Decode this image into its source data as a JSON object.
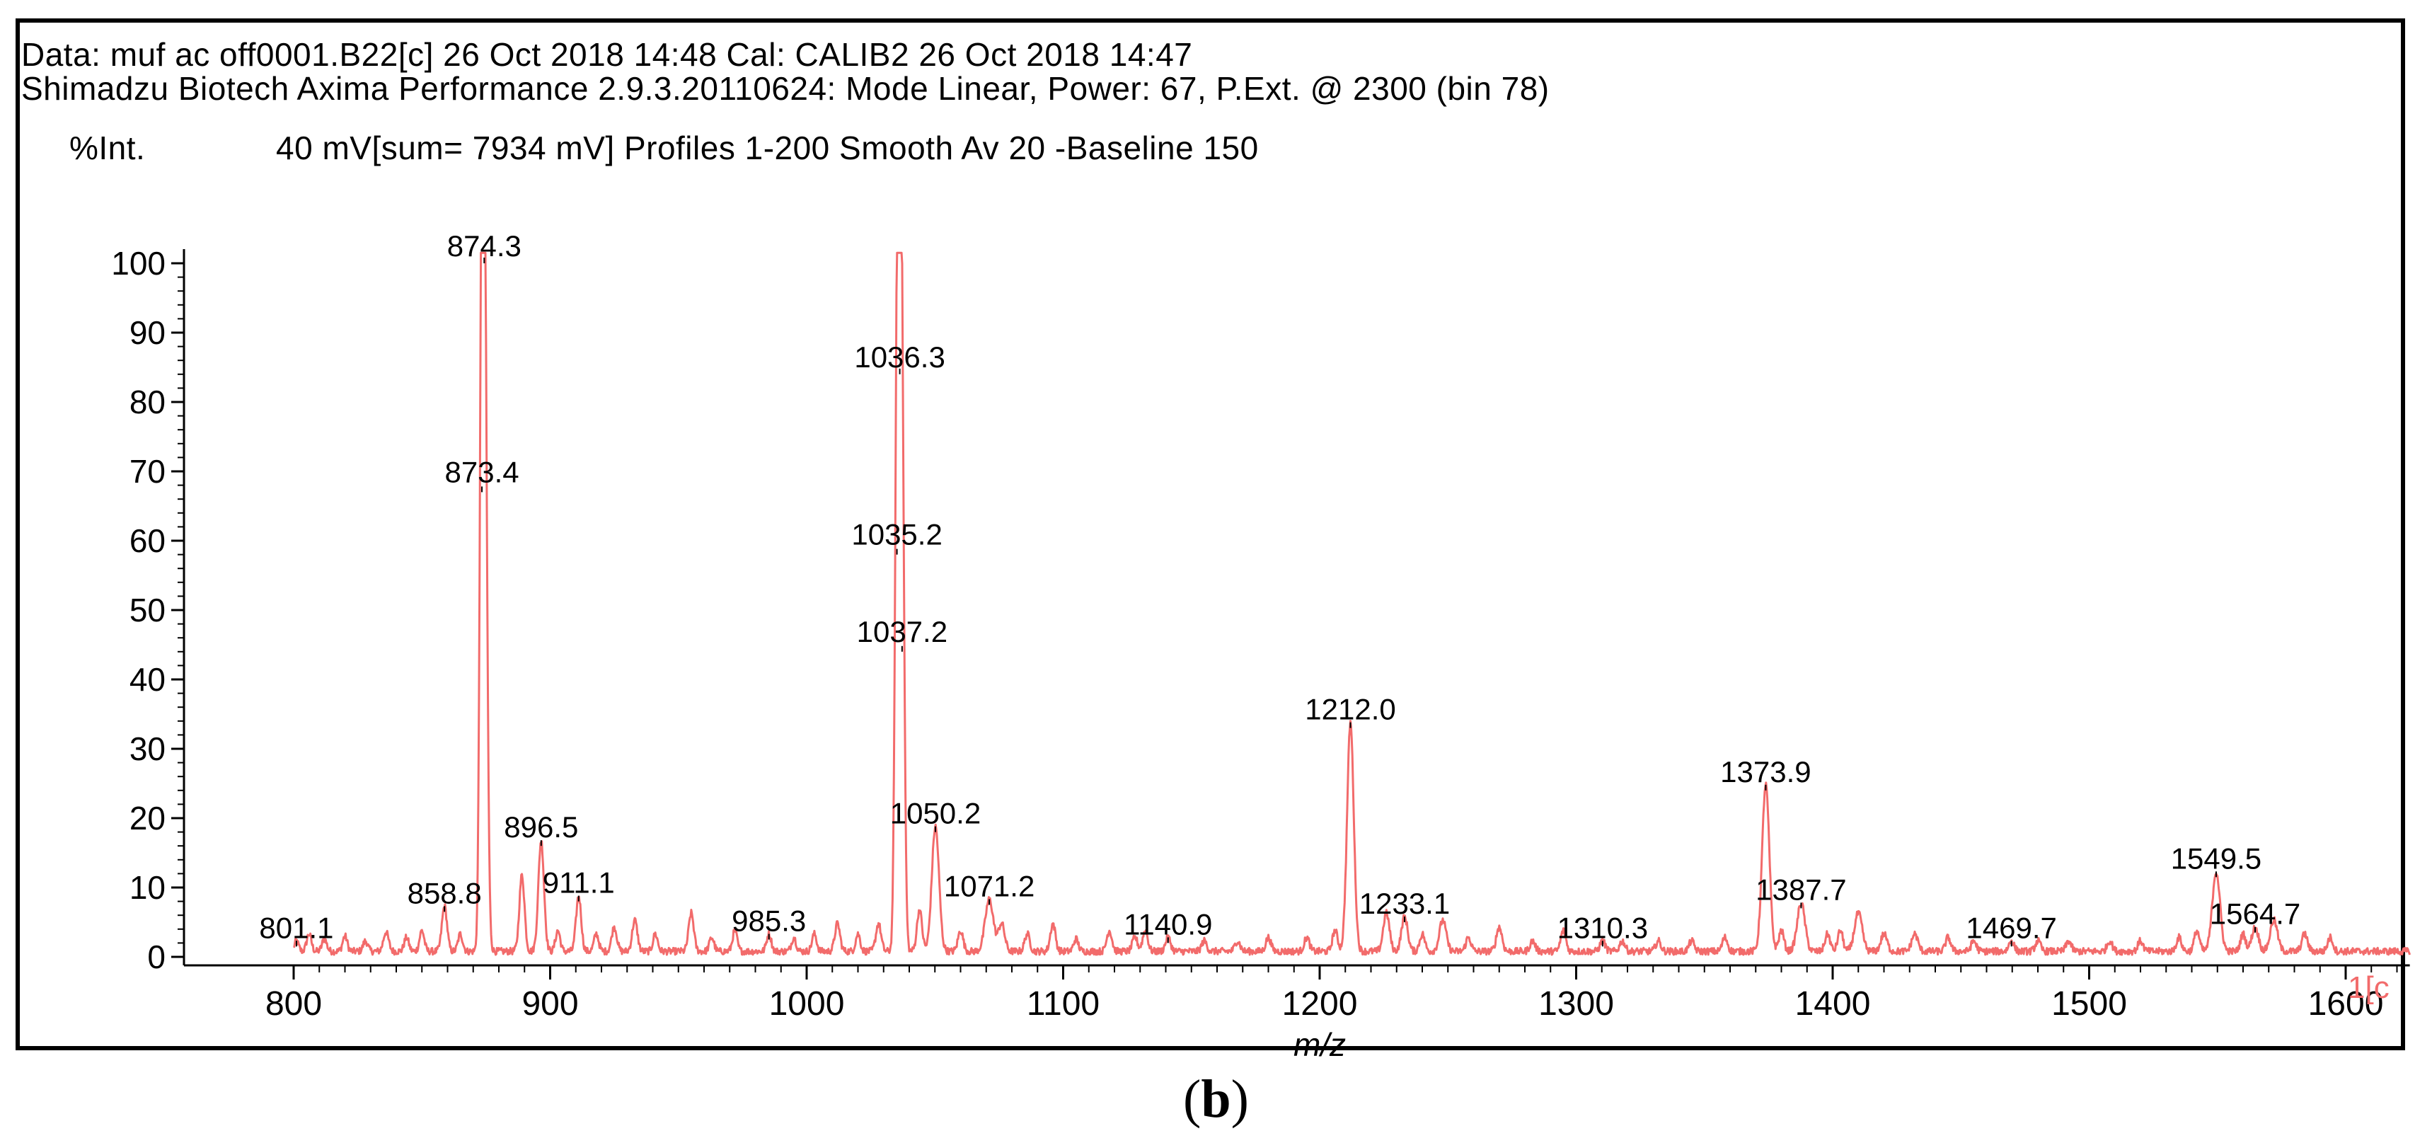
{
  "header": {
    "line1": "Data: muf ac off0001.B22[c] 26 Oct 2018 14:48 Cal: CALIB2 26 Oct 2018 14:47",
    "line2": "Shimadzu Biotech Axima Performance 2.9.3.20110624: Mode Linear, Power: 67, P.Ext. @ 2300 (bin 78)",
    "ylabel": "%Int.",
    "info": "40 mV[sum= 7934 mV]  Profiles 1-200 Smooth Av 20 -Baseline 150"
  },
  "caption": {
    "open": "(",
    "letter": "b",
    "close": ")"
  },
  "colors": {
    "spectrum": "#f26b6b",
    "axis": "#000000"
  },
  "chart_data": {
    "type": "line",
    "title": "",
    "xlabel": "m/z",
    "ylabel": "%Int.",
    "xlim": [
      800,
      1625
    ],
    "ylim": [
      0,
      100
    ],
    "x_ticks": [
      800,
      900,
      1000,
      1100,
      1200,
      1300,
      1400,
      1500,
      1600
    ],
    "y_ticks": [
      0,
      10,
      20,
      30,
      40,
      50,
      60,
      70,
      80,
      90,
      100
    ],
    "edge_label": "1[c",
    "peaks": [
      {
        "x": 801.1,
        "y": 1.5,
        "w": 0.8,
        "label": "801.1"
      },
      {
        "x": 858.8,
        "y": 6.5,
        "w": 1.0,
        "label": "858.8"
      },
      {
        "x": 873.4,
        "y": 67,
        "w": 0.8,
        "label": "873.4"
      },
      {
        "x": 874.3,
        "y": 100,
        "w": 1.0,
        "label": "874.3"
      },
      {
        "x": 896.5,
        "y": 16,
        "w": 1.1,
        "label": "896.5"
      },
      {
        "x": 911.1,
        "y": 8,
        "w": 1.0,
        "label": "911.1"
      },
      {
        "x": 985.3,
        "y": 2.5,
        "w": 0.9,
        "label": "985.3"
      },
      {
        "x": 1035.2,
        "y": 58,
        "w": 0.8,
        "label": "1035.2"
      },
      {
        "x": 1036.3,
        "y": 84,
        "w": 1.0,
        "label": "1036.3"
      },
      {
        "x": 1037.2,
        "y": 44,
        "w": 0.9,
        "label": "1037.2"
      },
      {
        "x": 1050.2,
        "y": 18,
        "w": 1.4,
        "label": "1050.2"
      },
      {
        "x": 1071.2,
        "y": 7.5,
        "w": 1.6,
        "label": "1071.2"
      },
      {
        "x": 1140.9,
        "y": 2,
        "w": 1.0,
        "label": "1140.9"
      },
      {
        "x": 1212.0,
        "y": 33,
        "w": 1.3,
        "label": "1212.0"
      },
      {
        "x": 1233.1,
        "y": 5,
        "w": 1.2,
        "label": "1233.1"
      },
      {
        "x": 1310.3,
        "y": 1.5,
        "w": 1.0,
        "label": "1310.3"
      },
      {
        "x": 1373.9,
        "y": 24,
        "w": 1.4,
        "label": "1373.9"
      },
      {
        "x": 1387.7,
        "y": 7,
        "w": 1.5,
        "label": "1387.7"
      },
      {
        "x": 1469.7,
        "y": 1.5,
        "w": 1.0,
        "label": "1469.7"
      },
      {
        "x": 1549.5,
        "y": 11.5,
        "w": 1.5,
        "label": "1549.5"
      },
      {
        "x": 1564.7,
        "y": 3.5,
        "w": 1.3,
        "label": "1564.7"
      }
    ],
    "minor_peaks": [
      {
        "x": 806,
        "y": 2.5,
        "w": 0.9
      },
      {
        "x": 812,
        "y": 1.8,
        "w": 0.9
      },
      {
        "x": 820,
        "y": 2.2,
        "w": 0.9
      },
      {
        "x": 828,
        "y": 1.5,
        "w": 0.9
      },
      {
        "x": 836,
        "y": 2.8,
        "w": 1.0
      },
      {
        "x": 844,
        "y": 2.0,
        "w": 0.9
      },
      {
        "x": 850,
        "y": 3.0,
        "w": 0.9
      },
      {
        "x": 865,
        "y": 2.5,
        "w": 0.9
      },
      {
        "x": 889,
        "y": 11,
        "w": 1.0
      },
      {
        "x": 903,
        "y": 3.0,
        "w": 0.9
      },
      {
        "x": 918,
        "y": 2.5,
        "w": 0.9
      },
      {
        "x": 925,
        "y": 3.5,
        "w": 1.0
      },
      {
        "x": 933,
        "y": 4.5,
        "w": 1.0
      },
      {
        "x": 941,
        "y": 2.5,
        "w": 0.9
      },
      {
        "x": 955,
        "y": 5.5,
        "w": 1.0
      },
      {
        "x": 963,
        "y": 2.0,
        "w": 0.9
      },
      {
        "x": 972,
        "y": 3.0,
        "w": 0.9
      },
      {
        "x": 995,
        "y": 2.0,
        "w": 0.9
      },
      {
        "x": 1003,
        "y": 2.5,
        "w": 0.9
      },
      {
        "x": 1012,
        "y": 4.0,
        "w": 1.0
      },
      {
        "x": 1020,
        "y": 2.5,
        "w": 0.9
      },
      {
        "x": 1028,
        "y": 4.0,
        "w": 1.0
      },
      {
        "x": 1044,
        "y": 6.0,
        "w": 1.0
      },
      {
        "x": 1060,
        "y": 3.0,
        "w": 1.0
      },
      {
        "x": 1076,
        "y": 4.0,
        "w": 1.2
      },
      {
        "x": 1086,
        "y": 2.5,
        "w": 1.0
      },
      {
        "x": 1096,
        "y": 4.0,
        "w": 1.0
      },
      {
        "x": 1105,
        "y": 1.8,
        "w": 0.9
      },
      {
        "x": 1118,
        "y": 3.0,
        "w": 1.0
      },
      {
        "x": 1128,
        "y": 2.0,
        "w": 1.0
      },
      {
        "x": 1132,
        "y": 3.0,
        "w": 1.0
      },
      {
        "x": 1155,
        "y": 1.5,
        "w": 1.0
      },
      {
        "x": 1168,
        "y": 1.5,
        "w": 1.0
      },
      {
        "x": 1180,
        "y": 2.0,
        "w": 1.0
      },
      {
        "x": 1195,
        "y": 2.0,
        "w": 1.0
      },
      {
        "x": 1206,
        "y": 3.0,
        "w": 1.0
      },
      {
        "x": 1226,
        "y": 5.5,
        "w": 1.2
      },
      {
        "x": 1240,
        "y": 2.5,
        "w": 1.0
      },
      {
        "x": 1248,
        "y": 4.5,
        "w": 1.3
      },
      {
        "x": 1258,
        "y": 2.0,
        "w": 1.0
      },
      {
        "x": 1270,
        "y": 3.5,
        "w": 1.1
      },
      {
        "x": 1283,
        "y": 1.5,
        "w": 1.0
      },
      {
        "x": 1295,
        "y": 3.0,
        "w": 1.0
      },
      {
        "x": 1318,
        "y": 1.5,
        "w": 1.0
      },
      {
        "x": 1332,
        "y": 1.5,
        "w": 1.0
      },
      {
        "x": 1345,
        "y": 1.5,
        "w": 1.0
      },
      {
        "x": 1358,
        "y": 2.0,
        "w": 1.0
      },
      {
        "x": 1380,
        "y": 3.0,
        "w": 1.0
      },
      {
        "x": 1398,
        "y": 2.5,
        "w": 1.0
      },
      {
        "x": 1403,
        "y": 3.0,
        "w": 1.0
      },
      {
        "x": 1410,
        "y": 5.5,
        "w": 1.5
      },
      {
        "x": 1420,
        "y": 2.5,
        "w": 1.2
      },
      {
        "x": 1432,
        "y": 2.5,
        "w": 1.2
      },
      {
        "x": 1445,
        "y": 2.0,
        "w": 1.0
      },
      {
        "x": 1455,
        "y": 1.5,
        "w": 1.0
      },
      {
        "x": 1480,
        "y": 1.5,
        "w": 1.0
      },
      {
        "x": 1492,
        "y": 1.5,
        "w": 1.0
      },
      {
        "x": 1508,
        "y": 1.5,
        "w": 1.0
      },
      {
        "x": 1520,
        "y": 1.5,
        "w": 1.0
      },
      {
        "x": 1535,
        "y": 2.0,
        "w": 1.0
      },
      {
        "x": 1542,
        "y": 3.0,
        "w": 1.0
      },
      {
        "x": 1560,
        "y": 2.5,
        "w": 1.0
      },
      {
        "x": 1572,
        "y": 4.5,
        "w": 1.4
      },
      {
        "x": 1584,
        "y": 2.5,
        "w": 1.1
      },
      {
        "x": 1594,
        "y": 2.0,
        "w": 1.0
      }
    ]
  }
}
